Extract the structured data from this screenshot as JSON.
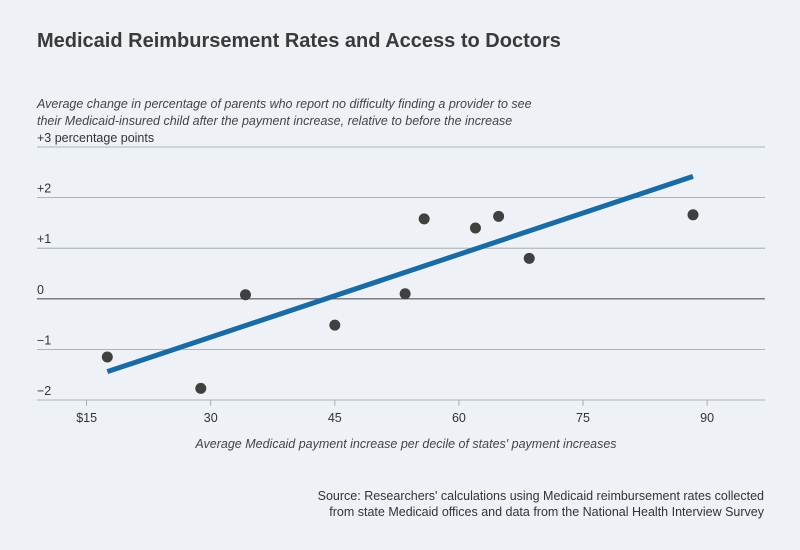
{
  "title": "Medicaid Reimbursement Rates and Access to Doctors",
  "source_line1": "Source: Researchers' calculations using Medicaid reimbursement rates collected",
  "source_line2": "from state Medicaid offices and data from the National Health Interview Survey",
  "chart_data": {
    "type": "scatter",
    "subtitle_line1": "Average change in percentage of parents who report no difficulty finding a provider to see",
    "subtitle_line2": "their Medicaid-insured child after the payment increase, relative to before the increase",
    "xlabel": "Average Medicaid payment increase per decile of states' payment increases",
    "y_ticks": [
      {
        "value": 3,
        "label": "+3 percentage points"
      },
      {
        "value": 2,
        "label": "+2"
      },
      {
        "value": 1,
        "label": "+1"
      },
      {
        "value": 0,
        "label": "0"
      },
      {
        "value": -1,
        "label": "−1"
      },
      {
        "value": -2,
        "label": "−2"
      }
    ],
    "x_ticks": [
      {
        "value": 15,
        "label": "$15"
      },
      {
        "value": 30,
        "label": "30"
      },
      {
        "value": 45,
        "label": "45"
      },
      {
        "value": 60,
        "label": "60"
      },
      {
        "value": 75,
        "label": "75"
      },
      {
        "value": 90,
        "label": "90"
      }
    ],
    "xlim": [
      9,
      97
    ],
    "ylim": [
      -2,
      3
    ],
    "points": [
      {
        "x": 17.5,
        "y": -1.15
      },
      {
        "x": 28.8,
        "y": -1.77
      },
      {
        "x": 34.2,
        "y": 0.08
      },
      {
        "x": 45.0,
        "y": -0.52
      },
      {
        "x": 53.5,
        "y": 0.1
      },
      {
        "x": 55.8,
        "y": 1.58
      },
      {
        "x": 62.0,
        "y": 1.4
      },
      {
        "x": 64.8,
        "y": 1.63
      },
      {
        "x": 68.5,
        "y": 0.8
      },
      {
        "x": 88.3,
        "y": 1.66
      }
    ],
    "trendline": {
      "x1": 17.5,
      "y1": -1.44,
      "x2": 88.3,
      "y2": 2.42
    },
    "colors": {
      "points": "#404040",
      "trendline": "#1a6aa3",
      "grid": "#9aa0a8",
      "zero": "#555555"
    },
    "grid": true,
    "legend": "none"
  }
}
